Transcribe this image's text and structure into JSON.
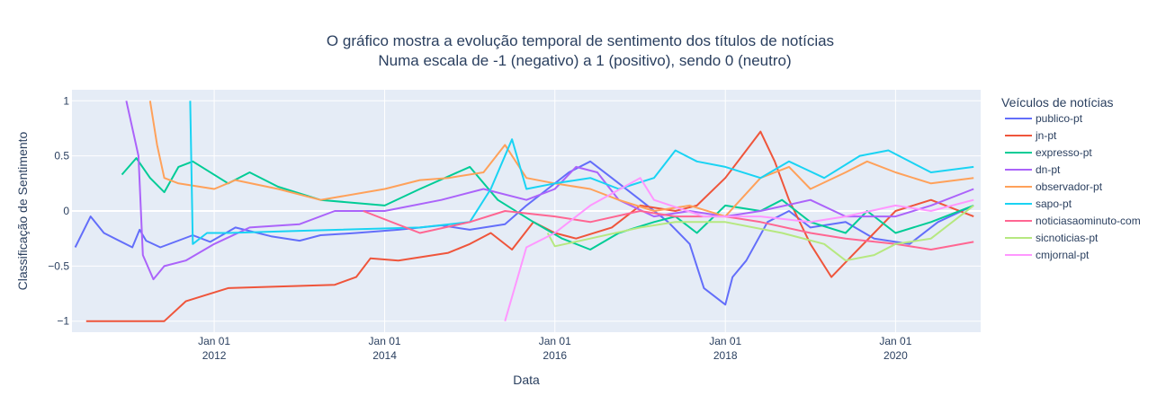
{
  "chart_data": {
    "type": "line",
    "title": "O gráfico mostra a evolução temporal de sentimento dos títulos de notícias",
    "subtitle": "Numa escala de -1 (negativo) a 1 (positivo), sendo 0 (neutro)",
    "xlabel": "Data",
    "ylabel": "Classificação de Sentimento",
    "xlim": [
      "2010-05-01",
      "2020-12-31"
    ],
    "ylim": [
      -1.1,
      1.1
    ],
    "grid": true,
    "plot_bg": "#e5ecf6",
    "legend": {
      "title": "Veículos de notícias",
      "position": "right"
    },
    "y_ticks": [
      {
        "value": 1,
        "label": "1"
      },
      {
        "value": 0.5,
        "label": "0.5"
      },
      {
        "value": 0,
        "label": "0"
      },
      {
        "value": -0.5,
        "label": "−0.5"
      },
      {
        "value": -1,
        "label": "−1"
      }
    ],
    "x_ticks": [
      {
        "date": "2012-01-01",
        "line1": "Jan 01",
        "line2": "2012"
      },
      {
        "date": "2014-01-01",
        "line1": "Jan 01",
        "line2": "2014"
      },
      {
        "date": "2016-01-01",
        "line1": "Jan 01",
        "line2": "2016"
      },
      {
        "date": "2018-01-01",
        "line1": "Jan 01",
        "line2": "2018"
      },
      {
        "date": "2020-01-01",
        "line1": "Jan 01",
        "line2": "2020"
      }
    ],
    "series": [
      {
        "name": "publico-pt",
        "color": "#636efa",
        "points": [
          [
            "2010-05-15",
            -0.33
          ],
          [
            "2010-07-20",
            -0.05
          ],
          [
            "2010-09-15",
            -0.2
          ],
          [
            "2011-01-15",
            -0.33
          ],
          [
            "2011-02-15",
            -0.17
          ],
          [
            "2011-03-15",
            -0.27
          ],
          [
            "2011-05-15",
            -0.33
          ],
          [
            "2011-10-01",
            -0.22
          ],
          [
            "2011-12-15",
            -0.28
          ],
          [
            "2012-04-01",
            -0.15
          ],
          [
            "2012-09-01",
            -0.23
          ],
          [
            "2013-01-01",
            -0.27
          ],
          [
            "2013-04-01",
            -0.22
          ],
          [
            "2013-09-01",
            -0.2
          ],
          [
            "2014-03-01",
            -0.17
          ],
          [
            "2014-09-01",
            -0.13
          ],
          [
            "2015-01-01",
            -0.17
          ],
          [
            "2015-06-01",
            -0.12
          ],
          [
            "2015-09-01",
            0.05
          ],
          [
            "2015-12-01",
            0.2
          ],
          [
            "2016-03-01",
            0.35
          ],
          [
            "2016-06-01",
            0.45
          ],
          [
            "2016-09-01",
            0.3
          ],
          [
            "2017-01-01",
            0.1
          ],
          [
            "2017-05-01",
            -0.1
          ],
          [
            "2017-08-01",
            -0.3
          ],
          [
            "2017-10-01",
            -0.7
          ],
          [
            "2018-01-01",
            -0.85
          ],
          [
            "2018-02-01",
            -0.6
          ],
          [
            "2018-04-01",
            -0.45
          ],
          [
            "2018-07-01",
            -0.1
          ],
          [
            "2018-10-01",
            0.0
          ],
          [
            "2019-01-01",
            -0.15
          ],
          [
            "2019-06-01",
            -0.1
          ],
          [
            "2019-10-01",
            -0.25
          ],
          [
            "2020-03-01",
            -0.3
          ],
          [
            "2020-07-01",
            -0.1
          ],
          [
            "2020-12-01",
            0.05
          ]
        ]
      },
      {
        "name": "jn-pt",
        "color": "#ef553b",
        "points": [
          [
            "2010-07-01",
            -1.0
          ],
          [
            "2011-06-01",
            -1.0
          ],
          [
            "2011-09-01",
            -0.82
          ],
          [
            "2012-03-01",
            -0.7
          ],
          [
            "2013-06-01",
            -0.67
          ],
          [
            "2013-09-01",
            -0.6
          ],
          [
            "2013-11-01",
            -0.43
          ],
          [
            "2014-03-01",
            -0.45
          ],
          [
            "2014-10-01",
            -0.38
          ],
          [
            "2015-01-01",
            -0.3
          ],
          [
            "2015-04-01",
            -0.2
          ],
          [
            "2015-07-01",
            -0.35
          ],
          [
            "2015-10-01",
            -0.1
          ],
          [
            "2016-01-01",
            -0.2
          ],
          [
            "2016-04-01",
            -0.25
          ],
          [
            "2016-09-01",
            -0.15
          ],
          [
            "2017-01-01",
            0.05
          ],
          [
            "2017-06-01",
            0.0
          ],
          [
            "2017-09-01",
            0.05
          ],
          [
            "2018-01-01",
            0.3
          ],
          [
            "2018-04-01",
            0.55
          ],
          [
            "2018-06-01",
            0.72
          ],
          [
            "2018-08-01",
            0.45
          ],
          [
            "2018-10-01",
            0.1
          ],
          [
            "2019-01-01",
            -0.3
          ],
          [
            "2019-04-01",
            -0.6
          ],
          [
            "2019-07-01",
            -0.4
          ],
          [
            "2019-10-01",
            -0.2
          ],
          [
            "2020-01-01",
            0.0
          ],
          [
            "2020-06-01",
            0.1
          ],
          [
            "2020-12-01",
            -0.05
          ]
        ]
      },
      {
        "name": "expresso-pt",
        "color": "#00cc96",
        "points": [
          [
            "2010-12-01",
            0.33
          ],
          [
            "2011-02-01",
            0.48
          ],
          [
            "2011-04-01",
            0.3
          ],
          [
            "2011-06-01",
            0.17
          ],
          [
            "2011-08-01",
            0.4
          ],
          [
            "2011-10-01",
            0.45
          ],
          [
            "2012-03-01",
            0.25
          ],
          [
            "2012-06-01",
            0.35
          ],
          [
            "2012-10-01",
            0.22
          ],
          [
            "2013-04-01",
            0.1
          ],
          [
            "2014-01-01",
            0.05
          ],
          [
            "2014-06-01",
            0.2
          ],
          [
            "2015-01-01",
            0.4
          ],
          [
            "2015-05-01",
            0.1
          ],
          [
            "2015-10-01",
            -0.1
          ],
          [
            "2016-02-01",
            -0.25
          ],
          [
            "2016-06-01",
            -0.35
          ],
          [
            "2016-10-01",
            -0.2
          ],
          [
            "2017-03-01",
            -0.1
          ],
          [
            "2017-06-01",
            -0.05
          ],
          [
            "2017-09-01",
            -0.2
          ],
          [
            "2018-01-01",
            0.05
          ],
          [
            "2018-06-01",
            0.0
          ],
          [
            "2018-09-01",
            0.1
          ],
          [
            "2019-01-01",
            -0.1
          ],
          [
            "2019-06-01",
            -0.2
          ],
          [
            "2019-09-01",
            0.0
          ],
          [
            "2020-01-01",
            -0.2
          ],
          [
            "2020-06-01",
            -0.1
          ],
          [
            "2020-12-01",
            0.05
          ]
        ]
      },
      {
        "name": "dn-pt",
        "color": "#ab63fa",
        "points": [
          [
            "2010-12-20",
            1.0
          ],
          [
            "2011-02-10",
            0.5
          ],
          [
            "2011-03-01",
            -0.4
          ],
          [
            "2011-04-15",
            -0.62
          ],
          [
            "2011-06-01",
            -0.5
          ],
          [
            "2011-09-01",
            -0.45
          ],
          [
            "2012-01-01",
            -0.3
          ],
          [
            "2012-06-01",
            -0.15
          ],
          [
            "2013-01-01",
            -0.12
          ],
          [
            "2013-06-01",
            0.0
          ],
          [
            "2014-01-01",
            0.0
          ],
          [
            "2014-09-01",
            0.1
          ],
          [
            "2015-03-01",
            0.2
          ],
          [
            "2015-09-01",
            0.1
          ],
          [
            "2016-01-01",
            0.2
          ],
          [
            "2016-04-01",
            0.4
          ],
          [
            "2016-07-01",
            0.35
          ],
          [
            "2016-10-01",
            0.1
          ],
          [
            "2017-03-01",
            -0.05
          ],
          [
            "2017-08-01",
            0.0
          ],
          [
            "2018-01-01",
            -0.05
          ],
          [
            "2018-06-01",
            0.0
          ],
          [
            "2019-01-01",
            0.1
          ],
          [
            "2019-06-01",
            -0.05
          ],
          [
            "2020-01-01",
            -0.05
          ],
          [
            "2020-06-01",
            0.05
          ],
          [
            "2020-12-01",
            0.2
          ]
        ]
      },
      {
        "name": "observador-pt",
        "color": "#ffa15a",
        "points": [
          [
            "2011-04-01",
            1.0
          ],
          [
            "2011-05-01",
            0.6
          ],
          [
            "2011-06-01",
            0.3
          ],
          [
            "2011-08-01",
            0.25
          ],
          [
            "2012-01-01",
            0.2
          ],
          [
            "2012-04-01",
            0.28
          ],
          [
            "2012-10-01",
            0.2
          ],
          [
            "2013-04-01",
            0.1
          ],
          [
            "2014-01-01",
            0.2
          ],
          [
            "2014-06-01",
            0.28
          ],
          [
            "2014-10-01",
            0.3
          ],
          [
            "2015-03-01",
            0.35
          ],
          [
            "2015-06-01",
            0.6
          ],
          [
            "2015-09-01",
            0.3
          ],
          [
            "2016-01-01",
            0.25
          ],
          [
            "2016-06-01",
            0.2
          ],
          [
            "2016-10-01",
            0.1
          ],
          [
            "2017-03-01",
            0.0
          ],
          [
            "2017-08-01",
            0.05
          ],
          [
            "2018-01-01",
            -0.05
          ],
          [
            "2018-06-01",
            0.3
          ],
          [
            "2018-10-01",
            0.4
          ],
          [
            "2019-01-01",
            0.2
          ],
          [
            "2019-06-01",
            0.35
          ],
          [
            "2019-09-01",
            0.45
          ],
          [
            "2020-01-01",
            0.35
          ],
          [
            "2020-06-01",
            0.25
          ],
          [
            "2020-12-01",
            0.3
          ]
        ]
      },
      {
        "name": "sapo-pt",
        "color": "#19d3f3",
        "points": [
          [
            "2011-09-20",
            1.0
          ],
          [
            "2011-10-01",
            -0.3
          ],
          [
            "2011-12-01",
            -0.2
          ],
          [
            "2012-03-01",
            -0.2
          ],
          [
            "2013-01-01",
            -0.18
          ],
          [
            "2014-06-01",
            -0.15
          ],
          [
            "2015-01-01",
            -0.1
          ],
          [
            "2015-04-01",
            0.2
          ],
          [
            "2015-07-01",
            0.65
          ],
          [
            "2015-09-01",
            0.2
          ],
          [
            "2016-01-01",
            0.25
          ],
          [
            "2016-06-01",
            0.3
          ],
          [
            "2016-10-01",
            0.2
          ],
          [
            "2017-03-01",
            0.3
          ],
          [
            "2017-06-01",
            0.55
          ],
          [
            "2017-09-01",
            0.45
          ],
          [
            "2018-01-01",
            0.4
          ],
          [
            "2018-06-01",
            0.3
          ],
          [
            "2018-10-01",
            0.45
          ],
          [
            "2019-03-01",
            0.3
          ],
          [
            "2019-08-01",
            0.5
          ],
          [
            "2019-12-01",
            0.55
          ],
          [
            "2020-03-01",
            0.45
          ],
          [
            "2020-06-01",
            0.35
          ],
          [
            "2020-12-01",
            0.4
          ]
        ]
      },
      {
        "name": "noticiasaominuto-com",
        "color": "#ff6692",
        "points": [
          [
            "2013-10-01",
            0.0
          ],
          [
            "2014-06-01",
            -0.2
          ],
          [
            "2015-01-01",
            -0.1
          ],
          [
            "2015-06-01",
            0.0
          ],
          [
            "2016-01-01",
            -0.05
          ],
          [
            "2016-06-01",
            -0.1
          ],
          [
            "2017-01-01",
            0.0
          ],
          [
            "2017-06-01",
            -0.05
          ],
          [
            "2018-01-01",
            -0.05
          ],
          [
            "2018-06-01",
            -0.1
          ],
          [
            "2019-01-01",
            -0.2
          ],
          [
            "2019-06-01",
            -0.25
          ],
          [
            "2020-01-01",
            -0.3
          ],
          [
            "2020-06-01",
            -0.35
          ],
          [
            "2020-12-01",
            -0.28
          ]
        ]
      },
      {
        "name": "sicnoticias-pt",
        "color": "#b6e880",
        "points": [
          [
            "2015-12-01",
            -0.2
          ],
          [
            "2016-01-01",
            -0.32
          ],
          [
            "2016-06-01",
            -0.25
          ],
          [
            "2017-01-01",
            -0.15
          ],
          [
            "2017-06-01",
            -0.1
          ],
          [
            "2018-01-01",
            -0.1
          ],
          [
            "2018-09-01",
            -0.2
          ],
          [
            "2019-03-01",
            -0.3
          ],
          [
            "2019-06-01",
            -0.45
          ],
          [
            "2019-10-01",
            -0.4
          ],
          [
            "2020-01-01",
            -0.3
          ],
          [
            "2020-06-01",
            -0.25
          ],
          [
            "2020-12-01",
            0.05
          ]
        ]
      },
      {
        "name": "cmjornal-pt",
        "color": "#ff97ff",
        "points": [
          [
            "2015-06-01",
            -1.0
          ],
          [
            "2015-09-01",
            -0.33
          ],
          [
            "2016-01-01",
            -0.2
          ],
          [
            "2016-06-01",
            0.05
          ],
          [
            "2017-01-01",
            0.3
          ],
          [
            "2017-03-01",
            0.1
          ],
          [
            "2017-10-01",
            -0.05
          ],
          [
            "2018-06-01",
            -0.05
          ],
          [
            "2019-01-01",
            -0.1
          ],
          [
            "2019-06-01",
            -0.05
          ],
          [
            "2020-01-01",
            0.05
          ],
          [
            "2020-06-01",
            0.0
          ],
          [
            "2020-12-01",
            0.1
          ]
        ]
      }
    ]
  }
}
